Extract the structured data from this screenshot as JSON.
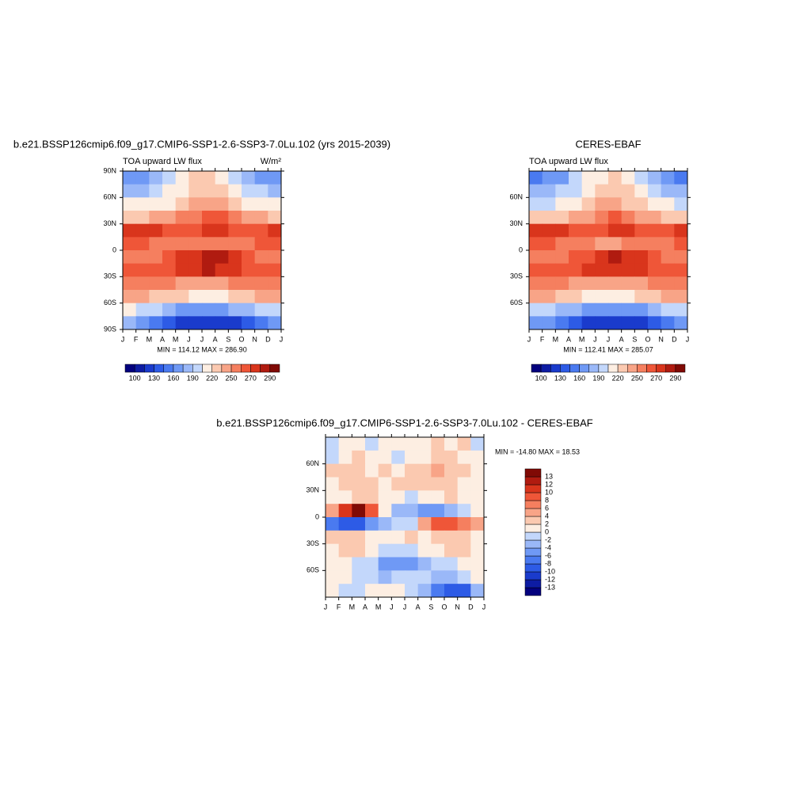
{
  "chart_data": [
    {
      "type": "contour",
      "title": "b.e21.BSSP126cmip6.f09_g17.CMIP6-SSP1-2.6-SSP3-7.0Lu.102 (yrs 2015-2039)",
      "subtitle": "TOA upward LW flux",
      "units": "W/m²",
      "annotation": "MIN = 114.12 MAX = 286.90",
      "categories": [
        "J",
        "F",
        "M",
        "A",
        "M",
        "J",
        "J",
        "A",
        "S",
        "O",
        "N",
        "D",
        "J"
      ],
      "ylim": [
        -90,
        90
      ],
      "yticks": [
        {
          "value": 90,
          "label": "90N"
        },
        {
          "value": 60,
          "label": "60N"
        },
        {
          "value": 30,
          "label": "30N"
        },
        0,
        {
          "value": -30,
          "label": "30S"
        },
        {
          "value": -60,
          "label": "60S"
        },
        {
          "value": -90,
          "label": "90S"
        }
      ],
      "y": [
        82.5,
        67.5,
        52.5,
        37.5,
        22.5,
        7.5,
        -7.5,
        -22.5,
        -37.5,
        -52.5,
        -67.5,
        -82.5
      ],
      "z": [
        [
          160,
          165,
          175,
          195,
          210,
          220,
          222,
          215,
          200,
          180,
          165,
          160
        ],
        [
          185,
          188,
          195,
          205,
          215,
          225,
          228,
          225,
          212,
          200,
          190,
          186
        ],
        [
          205,
          205,
          210,
          218,
          228,
          238,
          240,
          235,
          225,
          215,
          208,
          205
        ],
        [
          230,
          230,
          235,
          240,
          250,
          258,
          262,
          260,
          250,
          242,
          235,
          232
        ],
        [
          275,
          278,
          272,
          262,
          262,
          268,
          272,
          272,
          268,
          265,
          268,
          272
        ],
        [
          262,
          262,
          258,
          255,
          252,
          250,
          250,
          252,
          255,
          258,
          260,
          262
        ],
        [
          252,
          255,
          258,
          262,
          270,
          278,
          282,
          280,
          272,
          262,
          255,
          252
        ],
        [
          268,
          268,
          268,
          268,
          272,
          278,
          280,
          278,
          272,
          268,
          268,
          268
        ],
        [
          255,
          255,
          252,
          250,
          245,
          242,
          242,
          245,
          250,
          255,
          255,
          255
        ],
        [
          240,
          238,
          232,
          225,
          220,
          215,
          215,
          218,
          225,
          232,
          238,
          240
        ],
        [
          205,
          200,
          190,
          180,
          170,
          165,
          165,
          168,
          175,
          185,
          195,
          202
        ],
        [
          175,
          165,
          150,
          135,
          125,
          120,
          118,
          120,
          128,
          140,
          158,
          170
        ]
      ],
      "colorbar": {
        "orientation": "horizontal",
        "levels": [
          100,
          130,
          160,
          190,
          220,
          250,
          270,
          290
        ],
        "colors": [
          "#03017e",
          "#0d1ca3",
          "#1a3bcc",
          "#2d5be6",
          "#4a7af0",
          "#6f99f5",
          "#9ab8f8",
          "#c3d7fb",
          "#fdeee2",
          "#fbc9b0",
          "#f8a487",
          "#f57f5f",
          "#ef5638",
          "#d9351c",
          "#b01b10",
          "#800a05"
        ]
      }
    },
    {
      "type": "contour",
      "title": "CERES-EBAF",
      "subtitle": "TOA upward LW flux",
      "annotation": "MIN = 112.41 MAX = 285.07",
      "categories": [
        "J",
        "F",
        "M",
        "A",
        "M",
        "J",
        "J",
        "A",
        "S",
        "O",
        "N",
        "D",
        "J"
      ],
      "ylim": [
        -90,
        90
      ],
      "yticks": [
        {
          "value": 60,
          "label": "60N"
        },
        {
          "value": 30,
          "label": "30N"
        },
        0,
        {
          "value": -30,
          "label": "30S"
        },
        {
          "value": -60,
          "label": "60S"
        }
      ],
      "y": [
        82.5,
        67.5,
        52.5,
        37.5,
        22.5,
        7.5,
        -7.5,
        -22.5,
        -37.5,
        -52.5,
        -67.5,
        -82.5
      ],
      "z": [
        [
          158,
          163,
          174,
          194,
          209,
          219,
          221,
          214,
          198,
          178,
          163,
          158
        ],
        [
          184,
          187,
          194,
          204,
          214,
          224,
          227,
          224,
          210,
          198,
          188,
          185
        ],
        [
          204,
          204,
          209,
          217,
          227,
          237,
          239,
          234,
          224,
          214,
          207,
          204
        ],
        [
          229,
          229,
          234,
          239,
          249,
          257,
          261,
          259,
          249,
          241,
          234,
          231
        ],
        [
          273,
          276,
          270,
          260,
          260,
          266,
          270,
          270,
          266,
          263,
          266,
          270
        ],
        [
          260,
          260,
          256,
          253,
          250,
          248,
          248,
          250,
          253,
          256,
          258,
          260
        ],
        [
          250,
          253,
          256,
          260,
          268,
          276,
          280,
          278,
          270,
          260,
          253,
          250
        ],
        [
          266,
          266,
          266,
          266,
          270,
          276,
          278,
          276,
          270,
          266,
          266,
          266
        ],
        [
          254,
          254,
          251,
          249,
          244,
          241,
          241,
          244,
          249,
          254,
          254,
          254
        ],
        [
          239,
          237,
          231,
          224,
          219,
          214,
          214,
          217,
          224,
          231,
          237,
          239
        ],
        [
          204,
          199,
          189,
          179,
          169,
          164,
          164,
          167,
          174,
          184,
          194,
          201
        ],
        [
          174,
          164,
          149,
          134,
          124,
          119,
          117,
          119,
          127,
          139,
          157,
          169
        ]
      ],
      "colorbar": {
        "orientation": "horizontal",
        "levels": [
          100,
          130,
          160,
          190,
          220,
          250,
          270,
          290
        ],
        "colors": [
          "#03017e",
          "#0d1ca3",
          "#1a3bcc",
          "#2d5be6",
          "#4a7af0",
          "#6f99f5",
          "#9ab8f8",
          "#c3d7fb",
          "#fdeee2",
          "#fbc9b0",
          "#f8a487",
          "#f57f5f",
          "#ef5638",
          "#d9351c",
          "#b01b10",
          "#800a05"
        ]
      }
    },
    {
      "type": "contour",
      "title": "b.e21.BSSP126cmip6.f09_g17.CMIP6-SSP1-2.6-SSP3-7.0Lu.102 - CERES-EBAF",
      "annotation": "MIN = -14.80 MAX =  18.53",
      "categories": [
        "J",
        "F",
        "M",
        "A",
        "M",
        "J",
        "J",
        "A",
        "S",
        "O",
        "N",
        "D",
        "J"
      ],
      "ylim": [
        -90,
        90
      ],
      "yticks": [
        {
          "value": 60,
          "label": "60N"
        },
        {
          "value": 30,
          "label": "30N"
        },
        0,
        {
          "value": -30,
          "label": "30S"
        },
        {
          "value": -60,
          "label": "60S"
        }
      ],
      "y": [
        82.5,
        67.5,
        52.5,
        37.5,
        22.5,
        7.5,
        -7.5,
        -22.5,
        -37.5,
        -52.5,
        -67.5,
        -82.5
      ],
      "z": [
        [
          -1,
          0,
          1,
          -1,
          0,
          1,
          0,
          1,
          2,
          1,
          3,
          -1
        ],
        [
          -1,
          1,
          2,
          1,
          0,
          -1,
          0,
          1,
          2,
          3,
          1,
          0
        ],
        [
          2,
          3,
          2,
          1,
          2,
          1,
          2,
          3,
          4,
          3,
          2,
          1
        ],
        [
          1,
          2,
          3,
          2,
          1,
          2,
          3,
          2,
          3,
          2,
          1,
          1
        ],
        [
          0,
          1,
          2,
          3,
          1,
          0,
          -1,
          0,
          1,
          2,
          1,
          0
        ],
        [
          5,
          10,
          13,
          8,
          0,
          -3,
          -4,
          -5,
          -6,
          -4,
          -2,
          0
        ],
        [
          -8,
          -9,
          -10,
          -6,
          -3,
          -2,
          -2,
          4,
          8,
          8,
          6,
          5
        ],
        [
          2,
          3,
          2,
          1,
          0,
          1,
          2,
          1,
          2,
          3,
          2,
          1
        ],
        [
          1,
          2,
          2,
          1,
          -1,
          -2,
          -1,
          0,
          1,
          2,
          2,
          1
        ],
        [
          0,
          1,
          -1,
          -2,
          -5,
          -6,
          -5,
          -3,
          -2,
          -1,
          0,
          1
        ],
        [
          1,
          0,
          -1,
          -2,
          -3,
          -2,
          -1,
          -2,
          -4,
          -3,
          -2,
          1
        ],
        [
          0,
          -1,
          -2,
          0,
          1,
          0,
          -1,
          -3,
          -8,
          -10,
          -9,
          -4
        ]
      ],
      "colorbar": {
        "orientation": "vertical",
        "levels": [
          -13,
          -12,
          -10,
          -8,
          -6,
          -4,
          -2,
          0,
          2,
          4,
          6,
          8,
          10,
          12,
          13
        ],
        "colors": [
          "#03017e",
          "#0d1ca3",
          "#1a3bcc",
          "#2d5be6",
          "#4a7af0",
          "#6f99f5",
          "#9ab8f8",
          "#c3d7fb",
          "#fdeee2",
          "#fbc9b0",
          "#f8a487",
          "#f57f5f",
          "#ef5638",
          "#d9351c",
          "#b01b10",
          "#800a05"
        ]
      }
    }
  ]
}
